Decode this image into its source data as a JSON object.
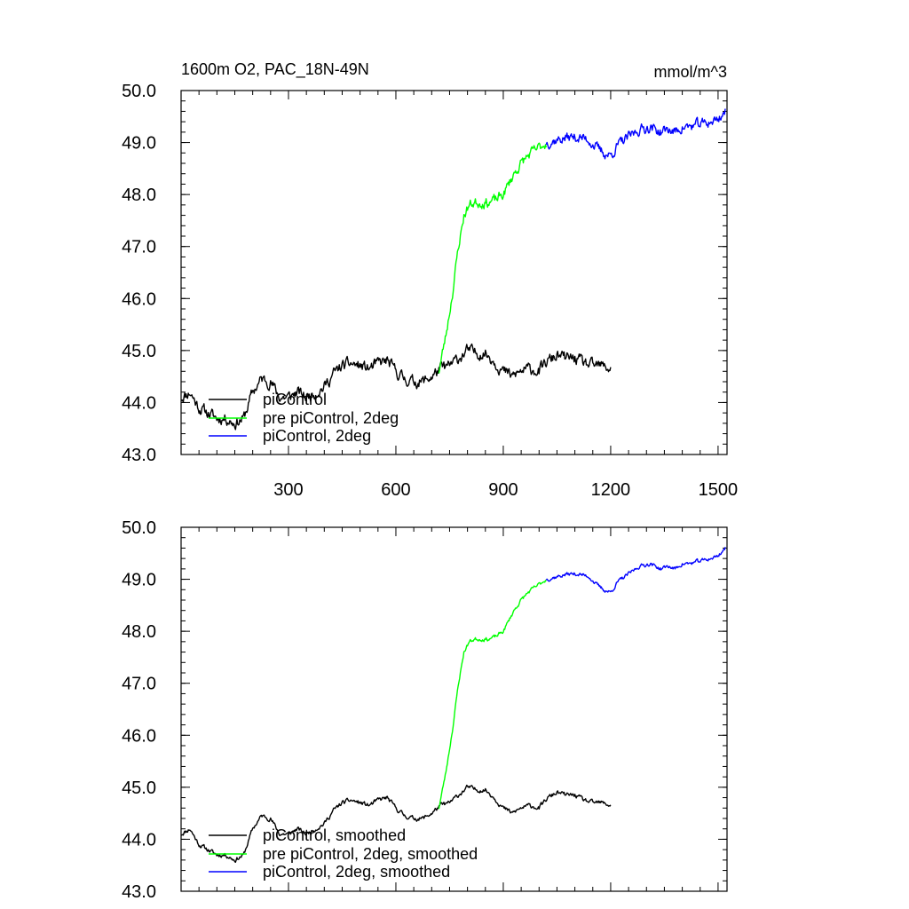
{
  "chart_data": [
    {
      "type": "line",
      "title": "1600m O2, PAC_18N-49N",
      "units": "mmol/m^3",
      "xlim": [
        0,
        1525
      ],
      "ylim": [
        43.0,
        50.0
      ],
      "x_ticks": [
        300,
        600,
        900,
        1200,
        1500
      ],
      "x_tick_labels": [
        "300",
        "600",
        "900",
        "1200",
        "1500"
      ],
      "y_ticks": [
        43.0,
        44.0,
        45.0,
        46.0,
        47.0,
        48.0,
        49.0,
        50.0
      ],
      "y_tick_labels": [
        "43.0",
        "44.0",
        "45.0",
        "46.0",
        "47.0",
        "48.0",
        "49.0",
        "50.0"
      ],
      "legend_position": "bottom-left",
      "series": [
        {
          "name": "piControl",
          "color": "#000000",
          "anchors_x": [
            0,
            25,
            50,
            75,
            100,
            125,
            150,
            175,
            200,
            225,
            250,
            275,
            300,
            325,
            350,
            375,
            400,
            425,
            450,
            475,
            500,
            525,
            550,
            575,
            600,
            625,
            650,
            675,
            700,
            725,
            750,
            775,
            800,
            825,
            850,
            875,
            900,
            925,
            950,
            975,
            1000,
            1025,
            1050,
            1075,
            1100,
            1125,
            1150,
            1175,
            1200
          ],
          "anchors_y": [
            44.1,
            44.2,
            43.9,
            43.8,
            43.7,
            43.7,
            43.6,
            43.7,
            44.2,
            44.45,
            44.4,
            44.1,
            44.1,
            44.2,
            44.1,
            44.2,
            44.3,
            44.55,
            44.7,
            44.75,
            44.7,
            44.65,
            44.75,
            44.8,
            44.6,
            44.45,
            44.4,
            44.4,
            44.5,
            44.65,
            44.7,
            44.85,
            45.0,
            44.95,
            44.95,
            44.8,
            44.6,
            44.5,
            44.6,
            44.65,
            44.6,
            44.8,
            44.9,
            44.85,
            44.85,
            44.75,
            44.7,
            44.7,
            44.65
          ],
          "noise": 0.09,
          "seed": 11
        },
        {
          "name": "pre piControl, 2deg",
          "color": "#00ff00",
          "anchors_x": [
            720,
            740,
            760,
            775,
            790,
            805,
            820,
            840,
            860,
            880,
            900,
            915,
            930,
            950,
            970,
            990,
            1010,
            1020
          ],
          "anchors_y": [
            44.6,
            45.3,
            46.2,
            47.0,
            47.6,
            47.8,
            47.85,
            47.85,
            47.85,
            47.9,
            48.0,
            48.2,
            48.4,
            48.6,
            48.75,
            48.85,
            48.95,
            49.0
          ],
          "noise": 0.08,
          "seed": 23
        },
        {
          "name": "piControl, 2deg",
          "color": "#0000ff",
          "anchors_x": [
            1020,
            1050,
            1080,
            1110,
            1140,
            1160,
            1180,
            1200,
            1220,
            1250,
            1280,
            1310,
            1340,
            1360,
            1380,
            1400,
            1420,
            1450,
            1480,
            1500,
            1520
          ],
          "anchors_y": [
            49.0,
            49.05,
            49.1,
            49.1,
            49.05,
            48.9,
            48.8,
            48.75,
            48.95,
            49.1,
            49.25,
            49.3,
            49.2,
            49.25,
            49.2,
            49.3,
            49.3,
            49.35,
            49.4,
            49.45,
            49.6
          ],
          "noise": 0.08,
          "seed": 37
        }
      ]
    },
    {
      "type": "line",
      "xlim": [
        0,
        1525
      ],
      "ylim": [
        43.0,
        50.0
      ],
      "y_ticks": [
        43.0,
        44.0,
        45.0,
        46.0,
        47.0,
        48.0,
        49.0,
        50.0
      ],
      "y_tick_labels": [
        "43.0",
        "44.0",
        "45.0",
        "46.0",
        "47.0",
        "48.0",
        "49.0",
        "50.0"
      ],
      "legend_position": "bottom-left",
      "series": [
        {
          "name": "piControl, smoothed",
          "color": "#000000",
          "anchors_x": [
            0,
            25,
            50,
            75,
            100,
            125,
            150,
            175,
            200,
            225,
            250,
            275,
            300,
            325,
            350,
            375,
            400,
            425,
            450,
            475,
            500,
            525,
            550,
            575,
            600,
            625,
            650,
            675,
            700,
            725,
            750,
            775,
            800,
            825,
            850,
            875,
            900,
            925,
            950,
            975,
            1000,
            1025,
            1050,
            1075,
            1100,
            1125,
            1150,
            1175,
            1200
          ],
          "anchors_y": [
            44.1,
            44.2,
            43.9,
            43.8,
            43.7,
            43.7,
            43.6,
            43.7,
            44.2,
            44.45,
            44.4,
            44.1,
            44.1,
            44.2,
            44.1,
            44.2,
            44.3,
            44.55,
            44.7,
            44.75,
            44.7,
            44.65,
            44.75,
            44.8,
            44.6,
            44.45,
            44.4,
            44.4,
            44.5,
            44.65,
            44.7,
            44.85,
            45.0,
            44.95,
            44.95,
            44.8,
            44.6,
            44.5,
            44.6,
            44.65,
            44.6,
            44.8,
            44.9,
            44.85,
            44.85,
            44.75,
            44.7,
            44.7,
            44.65
          ],
          "noise": 0.035,
          "seed": 11
        },
        {
          "name": "pre piControl, 2deg, smoothed",
          "color": "#00ff00",
          "anchors_x": [
            720,
            740,
            760,
            775,
            790,
            805,
            820,
            840,
            860,
            880,
            900,
            915,
            930,
            950,
            970,
            990,
            1010,
            1020
          ],
          "anchors_y": [
            44.6,
            45.3,
            46.2,
            47.0,
            47.6,
            47.8,
            47.85,
            47.85,
            47.85,
            47.9,
            48.0,
            48.2,
            48.4,
            48.6,
            48.75,
            48.85,
            48.95,
            49.0
          ],
          "noise": 0.03,
          "seed": 23
        },
        {
          "name": "piControl, 2deg, smoothed",
          "color": "#0000ff",
          "anchors_x": [
            1020,
            1050,
            1080,
            1110,
            1140,
            1160,
            1180,
            1200,
            1220,
            1250,
            1280,
            1310,
            1340,
            1360,
            1380,
            1400,
            1420,
            1450,
            1480,
            1500,
            1520
          ],
          "anchors_y": [
            49.0,
            49.05,
            49.1,
            49.1,
            49.05,
            48.9,
            48.8,
            48.75,
            48.95,
            49.1,
            49.25,
            49.3,
            49.2,
            49.25,
            49.2,
            49.3,
            49.3,
            49.35,
            49.4,
            49.45,
            49.6
          ],
          "noise": 0.03,
          "seed": 37
        }
      ]
    }
  ]
}
